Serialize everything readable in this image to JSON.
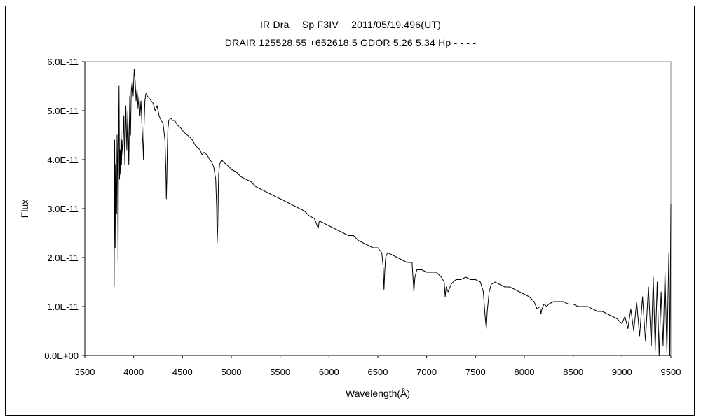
{
  "chart_data": {
    "type": "line",
    "title": "IR Dra　 Sp F3IV　 2011/05/19.496(UT)",
    "subtitle": "DRAIR 125528.55 +652618.5 GDOR 5.26 5.34 Hp - - - -",
    "xlabel": "Wavelength(Å)",
    "ylabel": "Flux",
    "xlim": [
      3500,
      9500
    ],
    "ylim": [
      0,
      6e-11
    ],
    "x_ticks": [
      "3500",
      "4000",
      "4500",
      "5000",
      "5500",
      "6000",
      "6500",
      "7000",
      "7500",
      "8000",
      "8500",
      "9000",
      "9500"
    ],
    "y_ticks": [
      "0.0E+00",
      "1.0E-11",
      "2.0E-11",
      "3.0E-11",
      "4.0E-11",
      "5.0E-11",
      "6.0E-11"
    ],
    "grid": false,
    "line_color": "#000000",
    "series": [
      {
        "name": "",
        "x": [
          3800,
          3805,
          3810,
          3815,
          3820,
          3825,
          3830,
          3835,
          3840,
          3845,
          3850,
          3855,
          3860,
          3865,
          3870,
          3875,
          3880,
          3890,
          3900,
          3910,
          3920,
          3930,
          3940,
          3950,
          3960,
          3968,
          3975,
          3985,
          3995,
          4005,
          4015,
          4025,
          4035,
          4045,
          4055,
          4065,
          4075,
          4085,
          4095,
          4101,
          4105,
          4115,
          4125,
          4140,
          4160,
          4180,
          4200,
          4220,
          4240,
          4260,
          4280,
          4300,
          4320,
          4330,
          4335,
          4340,
          4345,
          4350,
          4360,
          4380,
          4400,
          4420,
          4450,
          4480,
          4500,
          4520,
          4550,
          4580,
          4600,
          4630,
          4650,
          4680,
          4700,
          4720,
          4750,
          4780,
          4800,
          4820,
          4840,
          4850,
          4855,
          4861,
          4866,
          4870,
          4880,
          4900,
          4920,
          4950,
          4980,
          5000,
          5050,
          5100,
          5150,
          5200,
          5250,
          5300,
          5350,
          5400,
          5450,
          5500,
          5550,
          5600,
          5650,
          5700,
          5750,
          5800,
          5850,
          5890,
          5900,
          5950,
          6000,
          6050,
          6100,
          6150,
          6200,
          6250,
          6300,
          6350,
          6400,
          6450,
          6500,
          6540,
          6555,
          6563,
          6570,
          6580,
          6600,
          6650,
          6700,
          6750,
          6800,
          6850,
          6869,
          6880,
          6900,
          6950,
          7000,
          7050,
          7100,
          7150,
          7180,
          7190,
          7200,
          7220,
          7250,
          7270,
          7300,
          7350,
          7400,
          7450,
          7500,
          7550,
          7580,
          7600,
          7610,
          7620,
          7640,
          7660,
          7700,
          7750,
          7800,
          7850,
          7900,
          7950,
          8000,
          8050,
          8100,
          8130,
          8160,
          8170,
          8180,
          8200,
          8230,
          8250,
          8300,
          8350,
          8400,
          8450,
          8500,
          8550,
          8600,
          8650,
          8700,
          8750,
          8800,
          8850,
          8900,
          8950,
          9000,
          9030,
          9060,
          9090,
          9120,
          9150,
          9180,
          9210,
          9240,
          9270,
          9300,
          9320,
          9340,
          9360,
          9380,
          9400,
          9420,
          9440,
          9460,
          9480,
          9490,
          9500
        ],
        "values": [
          1.4e-11,
          4.4e-11,
          2.2e-11,
          3.9e-11,
          3.5e-11,
          2.9e-11,
          4.5e-11,
          3.8e-11,
          1.9e-11,
          4.3e-11,
          5.5e-11,
          3.6e-11,
          4.2e-11,
          3.7e-11,
          4.6e-11,
          3.9e-11,
          4.4e-11,
          4.1e-11,
          4.9e-11,
          3.9e-11,
          5.1e-11,
          4.2e-11,
          5e-11,
          3.9e-11,
          5.3e-11,
          4.5e-11,
          5.4e-11,
          5.6e-11,
          5.3e-11,
          5.85e-11,
          5.6e-11,
          5.2e-11,
          5.45e-11,
          5.05e-11,
          5.3e-11,
          4.9e-11,
          5.2e-11,
          4.7e-11,
          4.3e-11,
          4e-11,
          4.6e-11,
          5.2e-11,
          5.35e-11,
          5.3e-11,
          5.25e-11,
          5.2e-11,
          5.15e-11,
          5e-11,
          5.1e-11,
          4.9e-11,
          4.8e-11,
          4.75e-11,
          4.4e-11,
          3.8e-11,
          3.2e-11,
          3.6e-11,
          4.2e-11,
          4.6e-11,
          4.8e-11,
          4.85e-11,
          4.8e-11,
          4.8e-11,
          4.7e-11,
          4.65e-11,
          4.6e-11,
          4.55e-11,
          4.5e-11,
          4.45e-11,
          4.4e-11,
          4.3e-11,
          4.25e-11,
          4.2e-11,
          4.1e-11,
          4.15e-11,
          4.1e-11,
          4e-11,
          3.95e-11,
          3.85e-11,
          3.6e-11,
          3e-11,
          2.3e-11,
          2.6e-11,
          3.2e-11,
          3.7e-11,
          3.9e-11,
          4e-11,
          3.95e-11,
          3.9e-11,
          3.85e-11,
          3.8e-11,
          3.75e-11,
          3.65e-11,
          3.6e-11,
          3.55e-11,
          3.45e-11,
          3.4e-11,
          3.35e-11,
          3.3e-11,
          3.25e-11,
          3.2e-11,
          3.15e-11,
          3.1e-11,
          3.05e-11,
          3e-11,
          2.95e-11,
          2.85e-11,
          2.8e-11,
          2.6e-11,
          2.75e-11,
          2.7e-11,
          2.65e-11,
          2.6e-11,
          2.55e-11,
          2.5e-11,
          2.45e-11,
          2.45e-11,
          2.35e-11,
          2.3e-11,
          2.25e-11,
          2.2e-11,
          2.2e-11,
          2.1e-11,
          1.8e-11,
          1.35e-11,
          1.7e-11,
          2e-11,
          2.1e-11,
          2.05e-11,
          2e-11,
          1.95e-11,
          1.9e-11,
          1.9e-11,
          1.3e-11,
          1.6e-11,
          1.75e-11,
          1.75e-11,
          1.7e-11,
          1.7e-11,
          1.7e-11,
          1.6e-11,
          1.5e-11,
          1.2e-11,
          1.4e-11,
          1.3e-11,
          1.45e-11,
          1.5e-11,
          1.55e-11,
          1.55e-11,
          1.6e-11,
          1.55e-11,
          1.55e-11,
          1.5e-11,
          1.3e-11,
          7.5e-12,
          5.5e-12,
          9e-12,
          1.3e-11,
          1.45e-11,
          1.5e-11,
          1.45e-11,
          1.4e-11,
          1.4e-11,
          1.35e-11,
          1.3e-11,
          1.25e-11,
          1.2e-11,
          1.1e-11,
          9.5e-12,
          1e-11,
          8.5e-12,
          9.5e-12,
          1.05e-11,
          1e-11,
          1.05e-11,
          1.1e-11,
          1.1e-11,
          1.1e-11,
          1.05e-11,
          1.05e-11,
          1e-11,
          1e-11,
          1e-11,
          9.5e-12,
          9e-12,
          9e-12,
          8.5e-12,
          8e-12,
          7.5e-12,
          6.5e-12,
          8e-12,
          5.5e-12,
          9.5e-12,
          5e-12,
          1.1e-11,
          4e-12,
          1.2e-11,
          3e-12,
          1.4e-11,
          2e-12,
          1.6e-11,
          1e-12,
          1.5e-11,
          0.0,
          1.3e-11,
          2e-12,
          1.7e-11,
          5e-13,
          2.1e-11,
          0.0,
          3.1e-11
        ]
      }
    ]
  }
}
